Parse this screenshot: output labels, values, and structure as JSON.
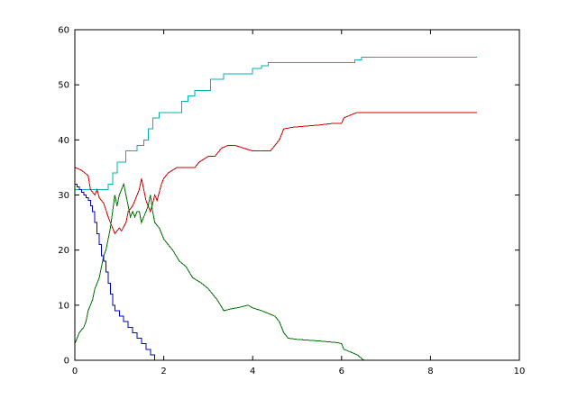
{
  "chart_data": {
    "type": "line",
    "title": "",
    "xlabel": "",
    "ylabel": "",
    "xlim": [
      0,
      10
    ],
    "ylim": [
      0,
      60
    ],
    "x_ticks": [
      0,
      2,
      4,
      6,
      8,
      10
    ],
    "y_ticks": [
      0,
      10,
      20,
      30,
      40,
      50,
      60
    ],
    "grid": false,
    "legend": "none",
    "series": [
      {
        "color": "#00b2b2",
        "style": "step",
        "points": [
          [
            0,
            31
          ],
          [
            0.2,
            31
          ],
          [
            0.45,
            31
          ],
          [
            0.6,
            31
          ],
          [
            0.75,
            32
          ],
          [
            0.85,
            34
          ],
          [
            0.95,
            36
          ],
          [
            1.05,
            36
          ],
          [
            1.15,
            38
          ],
          [
            1.3,
            38
          ],
          [
            1.4,
            39
          ],
          [
            1.55,
            40
          ],
          [
            1.65,
            42
          ],
          [
            1.75,
            44
          ],
          [
            1.9,
            45
          ],
          [
            2.0,
            45
          ],
          [
            2.2,
            45
          ],
          [
            2.4,
            47
          ],
          [
            2.55,
            48
          ],
          [
            2.7,
            49
          ],
          [
            2.9,
            49
          ],
          [
            3.05,
            51
          ],
          [
            3.25,
            51
          ],
          [
            3.35,
            52
          ],
          [
            3.6,
            52
          ],
          [
            3.85,
            52
          ],
          [
            4.0,
            53
          ],
          [
            4.2,
            53.5
          ],
          [
            4.35,
            54
          ],
          [
            5.0,
            54
          ],
          [
            5.5,
            54
          ],
          [
            6.0,
            54
          ],
          [
            6.3,
            54.5
          ],
          [
            6.45,
            55
          ],
          [
            7.0,
            55
          ],
          [
            8.0,
            55
          ],
          [
            9.05,
            55
          ]
        ]
      },
      {
        "color": "#cc0000",
        "style": "line",
        "points": [
          [
            0,
            35
          ],
          [
            0.15,
            34.5
          ],
          [
            0.3,
            33.5
          ],
          [
            0.35,
            31
          ],
          [
            0.45,
            30
          ],
          [
            0.5,
            31
          ],
          [
            0.55,
            29.5
          ],
          [
            0.65,
            28.5
          ],
          [
            0.75,
            26
          ],
          [
            0.85,
            24
          ],
          [
            0.9,
            23
          ],
          [
            1.0,
            24
          ],
          [
            1.05,
            23.5
          ],
          [
            1.15,
            25
          ],
          [
            1.2,
            27
          ],
          [
            1.3,
            28
          ],
          [
            1.35,
            29
          ],
          [
            1.45,
            31
          ],
          [
            1.5,
            33
          ],
          [
            1.55,
            31
          ],
          [
            1.6,
            29
          ],
          [
            1.65,
            28
          ],
          [
            1.7,
            27
          ],
          [
            1.75,
            28.5
          ],
          [
            1.8,
            30
          ],
          [
            1.85,
            29
          ],
          [
            1.95,
            32
          ],
          [
            2.0,
            33
          ],
          [
            2.1,
            34
          ],
          [
            2.3,
            35
          ],
          [
            2.5,
            35
          ],
          [
            2.7,
            35
          ],
          [
            2.8,
            36
          ],
          [
            3.0,
            37
          ],
          [
            3.15,
            37
          ],
          [
            3.3,
            38.5
          ],
          [
            3.45,
            39
          ],
          [
            3.6,
            39
          ],
          [
            3.8,
            38.5
          ],
          [
            4.0,
            38
          ],
          [
            4.2,
            38
          ],
          [
            4.4,
            38
          ],
          [
            4.5,
            39
          ],
          [
            4.6,
            40
          ],
          [
            4.7,
            42
          ],
          [
            4.9,
            42.3
          ],
          [
            5.2,
            42.5
          ],
          [
            5.5,
            42.7
          ],
          [
            5.8,
            43
          ],
          [
            6.0,
            43
          ],
          [
            6.05,
            44
          ],
          [
            6.2,
            44.5
          ],
          [
            6.35,
            45
          ],
          [
            7.0,
            45
          ],
          [
            8.0,
            45
          ],
          [
            9.05,
            45
          ]
        ]
      },
      {
        "color": "#006e00",
        "style": "line",
        "points": [
          [
            0,
            3
          ],
          [
            0.05,
            4
          ],
          [
            0.1,
            5
          ],
          [
            0.2,
            6
          ],
          [
            0.25,
            7
          ],
          [
            0.3,
            9
          ],
          [
            0.35,
            10
          ],
          [
            0.4,
            11
          ],
          [
            0.45,
            13
          ],
          [
            0.5,
            14
          ],
          [
            0.55,
            15
          ],
          [
            0.6,
            17
          ],
          [
            0.65,
            19
          ],
          [
            0.7,
            20
          ],
          [
            0.75,
            22
          ],
          [
            0.8,
            24
          ],
          [
            0.85,
            27
          ],
          [
            0.9,
            30
          ],
          [
            0.95,
            28
          ],
          [
            1.0,
            30
          ],
          [
            1.05,
            31
          ],
          [
            1.1,
            32
          ],
          [
            1.15,
            30
          ],
          [
            1.2,
            28
          ],
          [
            1.25,
            26
          ],
          [
            1.3,
            27
          ],
          [
            1.35,
            26
          ],
          [
            1.4,
            27
          ],
          [
            1.45,
            27
          ],
          [
            1.5,
            25
          ],
          [
            1.55,
            26
          ],
          [
            1.6,
            27
          ],
          [
            1.65,
            28
          ],
          [
            1.7,
            30
          ],
          [
            1.75,
            27
          ],
          [
            1.8,
            25
          ],
          [
            1.9,
            24
          ],
          [
            2.0,
            22
          ],
          [
            2.1,
            21
          ],
          [
            2.2,
            20
          ],
          [
            2.35,
            18
          ],
          [
            2.5,
            17
          ],
          [
            2.65,
            15
          ],
          [
            2.85,
            14
          ],
          [
            3.0,
            13
          ],
          [
            3.1,
            12
          ],
          [
            3.2,
            11
          ],
          [
            3.35,
            9
          ],
          [
            3.5,
            9.3
          ],
          [
            3.7,
            9.6
          ],
          [
            3.9,
            10
          ],
          [
            4.0,
            9.5
          ],
          [
            4.2,
            9
          ],
          [
            4.35,
            8.5
          ],
          [
            4.5,
            8
          ],
          [
            4.6,
            7
          ],
          [
            4.7,
            5
          ],
          [
            4.8,
            4
          ],
          [
            5.0,
            3.8
          ],
          [
            5.5,
            3.5
          ],
          [
            5.9,
            3.2
          ],
          [
            6.0,
            3
          ],
          [
            6.05,
            2
          ],
          [
            6.2,
            1.5
          ],
          [
            6.35,
            1
          ],
          [
            6.5,
            0
          ],
          [
            7.0,
            0
          ],
          [
            8.0,
            0
          ],
          [
            9.05,
            0
          ]
        ]
      },
      {
        "color": "#0000c8",
        "style": "step",
        "points": [
          [
            0,
            32
          ],
          [
            0.05,
            31.5
          ],
          [
            0.1,
            31
          ],
          [
            0.15,
            30.5
          ],
          [
            0.2,
            30
          ],
          [
            0.25,
            29.5
          ],
          [
            0.3,
            29
          ],
          [
            0.35,
            28
          ],
          [
            0.4,
            27
          ],
          [
            0.45,
            25
          ],
          [
            0.5,
            23
          ],
          [
            0.55,
            21
          ],
          [
            0.6,
            19
          ],
          [
            0.65,
            18
          ],
          [
            0.7,
            16
          ],
          [
            0.75,
            14
          ],
          [
            0.8,
            12
          ],
          [
            0.85,
            10
          ],
          [
            0.9,
            9
          ],
          [
            1.0,
            8
          ],
          [
            1.1,
            7
          ],
          [
            1.2,
            6
          ],
          [
            1.3,
            5
          ],
          [
            1.4,
            4
          ],
          [
            1.5,
            3
          ],
          [
            1.6,
            2
          ],
          [
            1.7,
            1
          ],
          [
            1.8,
            0
          ],
          [
            2.0,
            0
          ],
          [
            4.0,
            0
          ],
          [
            6.0,
            0
          ],
          [
            6.5,
            0
          ]
        ]
      }
    ]
  }
}
